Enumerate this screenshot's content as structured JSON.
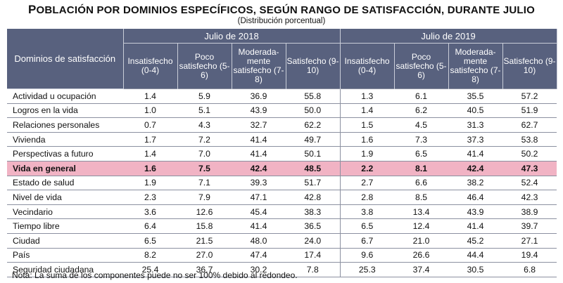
{
  "title_first": "P",
  "title_rest": "OBLACIÓN POR DOMINIOS ESPECÍFICOS, SEGÚN RANGO DE SATISFACCIÓN, DURANTE JULIO",
  "subtitle": "(Distribución porcentual)",
  "chart_data": {
    "type": "table",
    "row_header": "Dominios de satisfacción",
    "periods": [
      "Julio de 2018",
      "Julio de 2019"
    ],
    "categories": [
      "Insatisfecho (0-4)",
      "Poco satisfecho (5-6)",
      "Moderada-mente satisfecho (7-8)",
      "Satisfecho (9-10)"
    ],
    "rows": [
      {
        "label": "Actividad u ocupación",
        "v2018": [
          "1.4",
          "5.9",
          "36.9",
          "55.8"
        ],
        "v2019": [
          "1.3",
          "6.1",
          "35.5",
          "57.2"
        ]
      },
      {
        "label": "Logros en la vida",
        "v2018": [
          "1.0",
          "5.1",
          "43.9",
          "50.0"
        ],
        "v2019": [
          "1.4",
          "6.2",
          "40.5",
          "51.9"
        ]
      },
      {
        "label": "Relaciones personales",
        "v2018": [
          "0.7",
          "4.3",
          "32.7",
          "62.2"
        ],
        "v2019": [
          "1.5",
          "4.5",
          "31.3",
          "62.7"
        ]
      },
      {
        "label": "Vivienda",
        "v2018": [
          "1.7",
          "7.2",
          "41.4",
          "49.7"
        ],
        "v2019": [
          "1.6",
          "7.3",
          "37.3",
          "53.8"
        ]
      },
      {
        "label": "Perspectivas a futuro",
        "v2018": [
          "1.4",
          "7.0",
          "41.4",
          "50.1"
        ],
        "v2019": [
          "1.9",
          "6.5",
          "41.4",
          "50.2"
        ]
      },
      {
        "label": "Vida en general",
        "v2018": [
          "1.6",
          "7.5",
          "42.4",
          "48.5"
        ],
        "v2019": [
          "2.2",
          "8.1",
          "42.4",
          "47.3"
        ],
        "highlight": true
      },
      {
        "label": "Estado de salud",
        "v2018": [
          "1.9",
          "7.1",
          "39.3",
          "51.7"
        ],
        "v2019": [
          "2.7",
          "6.6",
          "38.2",
          "52.4"
        ]
      },
      {
        "label": "Nivel de vida",
        "v2018": [
          "2.3",
          "7.9",
          "47.1",
          "42.8"
        ],
        "v2019": [
          "2.8",
          "8.5",
          "46.4",
          "42.3"
        ]
      },
      {
        "label": "Vecindario",
        "v2018": [
          "3.6",
          "12.6",
          "45.4",
          "38.3"
        ],
        "v2019": [
          "3.8",
          "13.4",
          "43.9",
          "38.9"
        ]
      },
      {
        "label": "Tiempo libre",
        "v2018": [
          "6.4",
          "15.8",
          "41.4",
          "36.5"
        ],
        "v2019": [
          "6.5",
          "12.4",
          "41.4",
          "39.7"
        ]
      },
      {
        "label": "Ciudad",
        "v2018": [
          "6.5",
          "21.5",
          "48.0",
          "24.0"
        ],
        "v2019": [
          "6.7",
          "21.0",
          "45.2",
          "27.1"
        ]
      },
      {
        "label": "País",
        "v2018": [
          "8.2",
          "27.0",
          "47.4",
          "17.4"
        ],
        "v2019": [
          "9.6",
          "26.6",
          "44.4",
          "19.4"
        ]
      },
      {
        "label": "Seguridad ciudadana",
        "v2018": [
          "25.4",
          "36.7",
          "30.2",
          "7.8"
        ],
        "v2019": [
          "25.3",
          "37.4",
          "30.5",
          "6.8"
        ]
      }
    ]
  },
  "note": "Nota: La suma de los componentes puede no ser 100% debido al redondeo.",
  "colors": {
    "header_bg": "#58617e",
    "highlight_bg": "#f1b3c4"
  }
}
